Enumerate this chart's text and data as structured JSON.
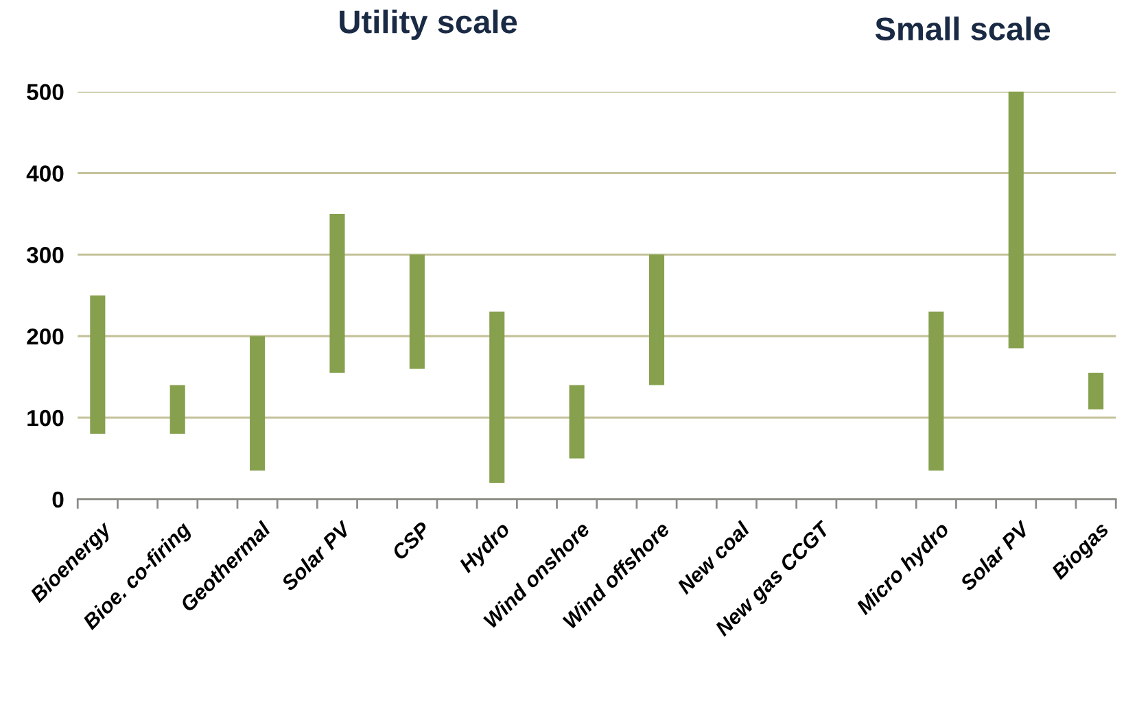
{
  "chart_data": {
    "type": "bar",
    "annotations": [
      "Utility scale",
      "Small scale"
    ],
    "categories": [
      "Bioenergy",
      null,
      "Bioe. co-firing",
      null,
      "Geothermal",
      null,
      "Solar PV",
      null,
      "CSP",
      null,
      "Hydro",
      null,
      "Wind onshore",
      null,
      "Wind offshore",
      null,
      "New coal",
      null,
      "New gas CCGT",
      null,
      null,
      "Micro hydro",
      null,
      "Solar PV",
      null,
      "Biogas"
    ],
    "base": [
      80,
      null,
      80,
      null,
      35,
      null,
      155,
      null,
      160,
      null,
      20,
      null,
      50,
      null,
      140,
      null,
      null,
      null,
      null,
      null,
      null,
      35,
      null,
      185,
      null,
      110
    ],
    "values": [
      170,
      null,
      60,
      null,
      165,
      null,
      195,
      null,
      140,
      null,
      210,
      null,
      90,
      null,
      160,
      null,
      null,
      null,
      null,
      null,
      null,
      195,
      null,
      315,
      null,
      45
    ],
    "color": "#86a04e",
    "ylim": [
      0,
      500
    ],
    "yticks": [
      0,
      100,
      200,
      300,
      400,
      500
    ],
    "grid": "y"
  }
}
